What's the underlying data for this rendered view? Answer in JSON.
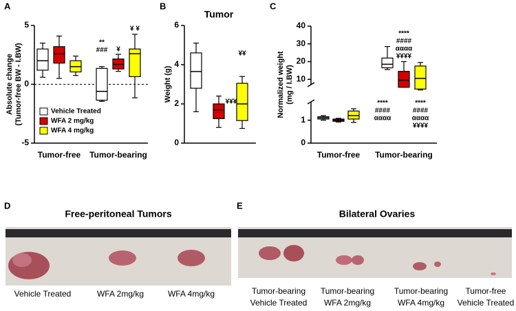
{
  "chart_data": [
    {
      "type": "box",
      "label": "A",
      "ylabel": [
        "Absolute change",
        "(Tumor-free BW - I.BW)"
      ],
      "categories": [
        "Tumor-free",
        "Tumor-bearing"
      ],
      "series": [
        {
          "name": "Vehicle Treated",
          "color": "#ffffff",
          "values": [
            {
              "min": 0.6,
              "q1": 1.2,
              "median": 2.0,
              "q3": 3.0,
              "max": 3.5
            },
            {
              "min": -1.45,
              "q1": -1.35,
              "median": -0.6,
              "q3": 1.35,
              "max": 1.5
            }
          ]
        },
        {
          "name": "WFA 2 mg/kg",
          "color": "#d40000",
          "values": [
            {
              "min": 0.5,
              "q1": 1.8,
              "median": 2.6,
              "q3": 3.2,
              "max": 4.1
            },
            {
              "min": 1.1,
              "q1": 1.3,
              "median": 1.7,
              "q3": 2.15,
              "max": 2.55
            }
          ]
        },
        {
          "name": "WFA 4 mg/kg",
          "color": "#ffff00",
          "values": [
            {
              "min": 0.75,
              "q1": 1.05,
              "median": 1.5,
              "q3": 2.0,
              "max": 2.4
            },
            {
              "min": -1.15,
              "q1": 0.65,
              "median": 2.6,
              "q3": 3.0,
              "max": 4.25
            }
          ]
        }
      ],
      "ylim": [
        -5,
        5
      ],
      "yticks": [
        -5,
        0,
        5
      ],
      "reference_line": 0,
      "annotations": [
        [
          "**",
          "###"
        ],
        [
          "¥"
        ],
        [
          "¥ ¥"
        ]
      ]
    },
    {
      "type": "box",
      "label": "B",
      "title": "Tumor",
      "ylabel": [
        "Weight (g)"
      ],
      "series": [
        {
          "color": "#ffffff",
          "values": [
            {
              "min": 1.6,
              "q1": 2.8,
              "median": 3.65,
              "q3": 4.6,
              "max": 5.1
            }
          ]
        },
        {
          "color": "#d40000",
          "values": [
            {
              "min": 0.8,
              "q1": 1.25,
              "median": 1.7,
              "q3": 2.0,
              "max": 2.4
            }
          ]
        },
        {
          "color": "#ffff00",
          "values": [
            {
              "min": 0.75,
              "q1": 1.15,
              "median": 2.0,
              "q3": 3.05,
              "max": 3.4
            }
          ]
        }
      ],
      "ylim": [
        0,
        6
      ],
      "yticks": [
        0,
        2,
        4,
        6
      ],
      "annotations": [
        [
          "¥¥¥"
        ],
        [
          "¥¥"
        ]
      ]
    },
    {
      "type": "box",
      "label": "C",
      "ylabel": [
        "Normalized weight",
        "(mg / I.BW)"
      ],
      "categories": [
        "Tumor-free",
        "Tumor-bearing"
      ],
      "series": [
        {
          "color": "#ffffff",
          "values": [
            {
              "min": 1.0,
              "q1": 1.05,
              "median": 1.1,
              "q3": 1.15,
              "max": 1.2
            },
            {
              "min": 15.5,
              "q1": 16.5,
              "median": 18.5,
              "q3": 22,
              "max": 28.5
            }
          ]
        },
        {
          "color": "#d40000",
          "values": [
            {
              "min": 0.92,
              "q1": 0.95,
              "median": 1.0,
              "q3": 1.05,
              "max": 1.08
            },
            {
              "min": 5.5,
              "q1": 5.5,
              "median": 9.5,
              "q3": 14.5,
              "max": 20
            }
          ]
        },
        {
          "color": "#ffff00",
          "values": [
            {
              "min": 0.9,
              "q1": 1.05,
              "median": 1.2,
              "q3": 1.4,
              "max": 1.5
            },
            {
              "min": 4,
              "q1": 4.5,
              "median": 10.5,
              "q3": 17.5,
              "max": 19.5
            }
          ]
        }
      ],
      "ylim": [
        0,
        40
      ],
      "axis_break": [
        1.8,
        7
      ],
      "yticks": [
        0,
        1,
        10,
        20,
        30,
        40
      ],
      "annotations": [
        [
          "****",
          "####",
          "αααα"
        ],
        [
          "****",
          "####",
          "αααα",
          "¥¥¥¥"
        ],
        [
          "****",
          "####",
          "αααα",
          "¥¥¥¥"
        ]
      ]
    }
  ],
  "photos": [
    {
      "label": "D",
      "title": "Free-peritoneal Tumors",
      "captions": [
        [
          "Vehicle Treated"
        ],
        [
          "WFA 2mg/kg"
        ],
        [
          "WFA 4mg/kg"
        ]
      ]
    },
    {
      "label": "E",
      "title": "Bilateral Ovaries",
      "captions": [
        [
          "Tumor-bearing",
          "Vehicle Treated"
        ],
        [
          "Tumor-bearing",
          "WFA 2mg/kg"
        ],
        [
          "Tumor-bearing",
          "WFA 4mg/kg"
        ],
        [
          "Tumor-free",
          "Vehicle Treated"
        ]
      ]
    }
  ]
}
